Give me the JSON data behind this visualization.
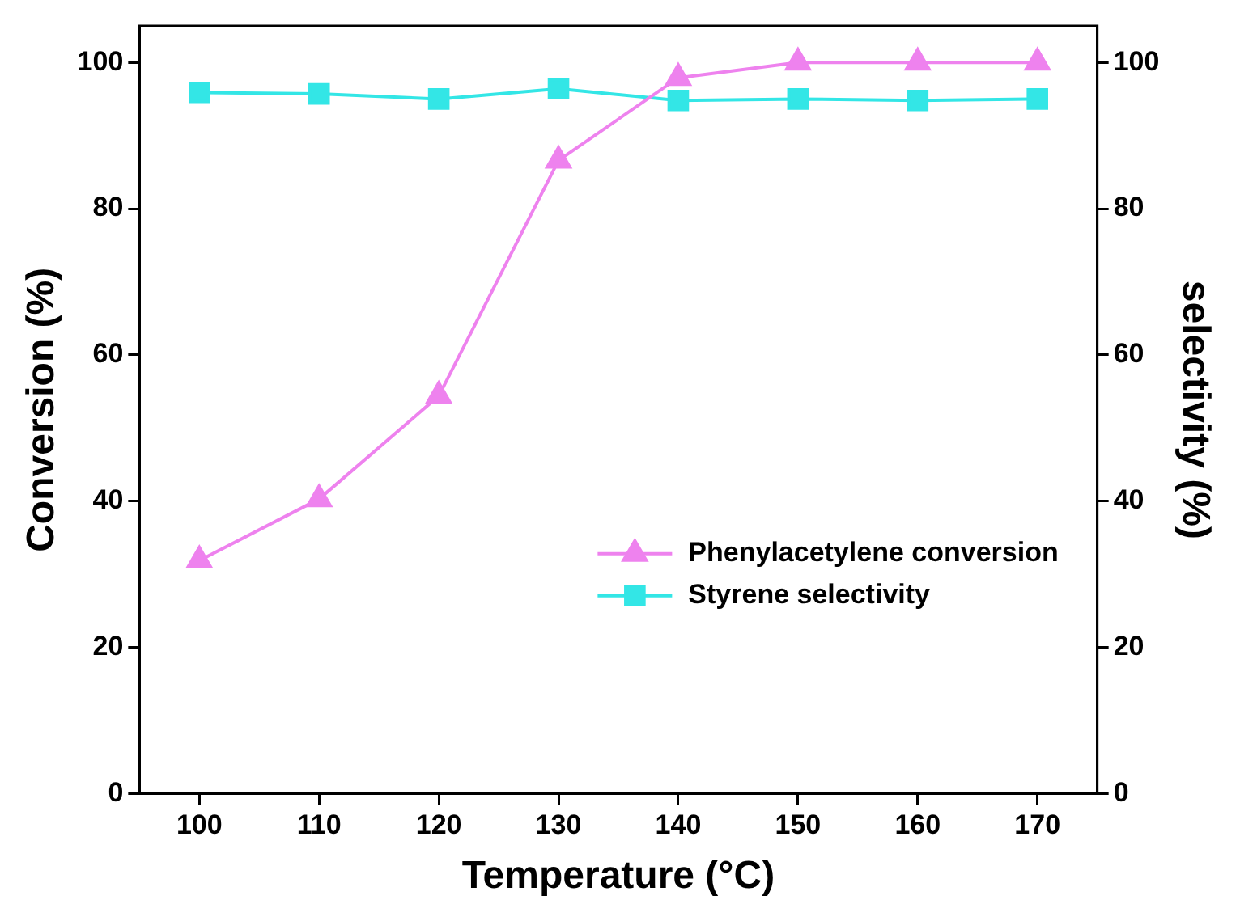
{
  "chart_data": {
    "type": "line",
    "xlabel": "Temperature (°C)",
    "ylabel": "Conversion (%)",
    "y2label": "selectivity (%)",
    "x": [
      100,
      110,
      120,
      130,
      140,
      150,
      160,
      170
    ],
    "xlim": [
      95,
      175
    ],
    "xticks": [
      100,
      110,
      120,
      130,
      140,
      150,
      160,
      170
    ],
    "ylim": [
      0,
      105
    ],
    "yticks": [
      0,
      20,
      40,
      60,
      80,
      100
    ],
    "y2lim": [
      0,
      105
    ],
    "y2ticks": [
      0,
      20,
      40,
      60,
      80,
      100
    ],
    "grid": false,
    "legend": "bottom right",
    "series": [
      {
        "name": "Phenylacetylene conversion",
        "color": "#ee82ee",
        "marker": "triangle",
        "values": [
          31.9,
          40.3,
          54.4,
          86.6,
          97.9,
          100,
          100,
          100
        ]
      },
      {
        "name": "Styrene selectivity",
        "color": "#33e6e6",
        "marker": "square",
        "axis": "y2",
        "values": [
          95.9,
          95.7,
          95.0,
          96.4,
          94.8,
          95.0,
          94.8,
          95.0
        ]
      }
    ]
  }
}
